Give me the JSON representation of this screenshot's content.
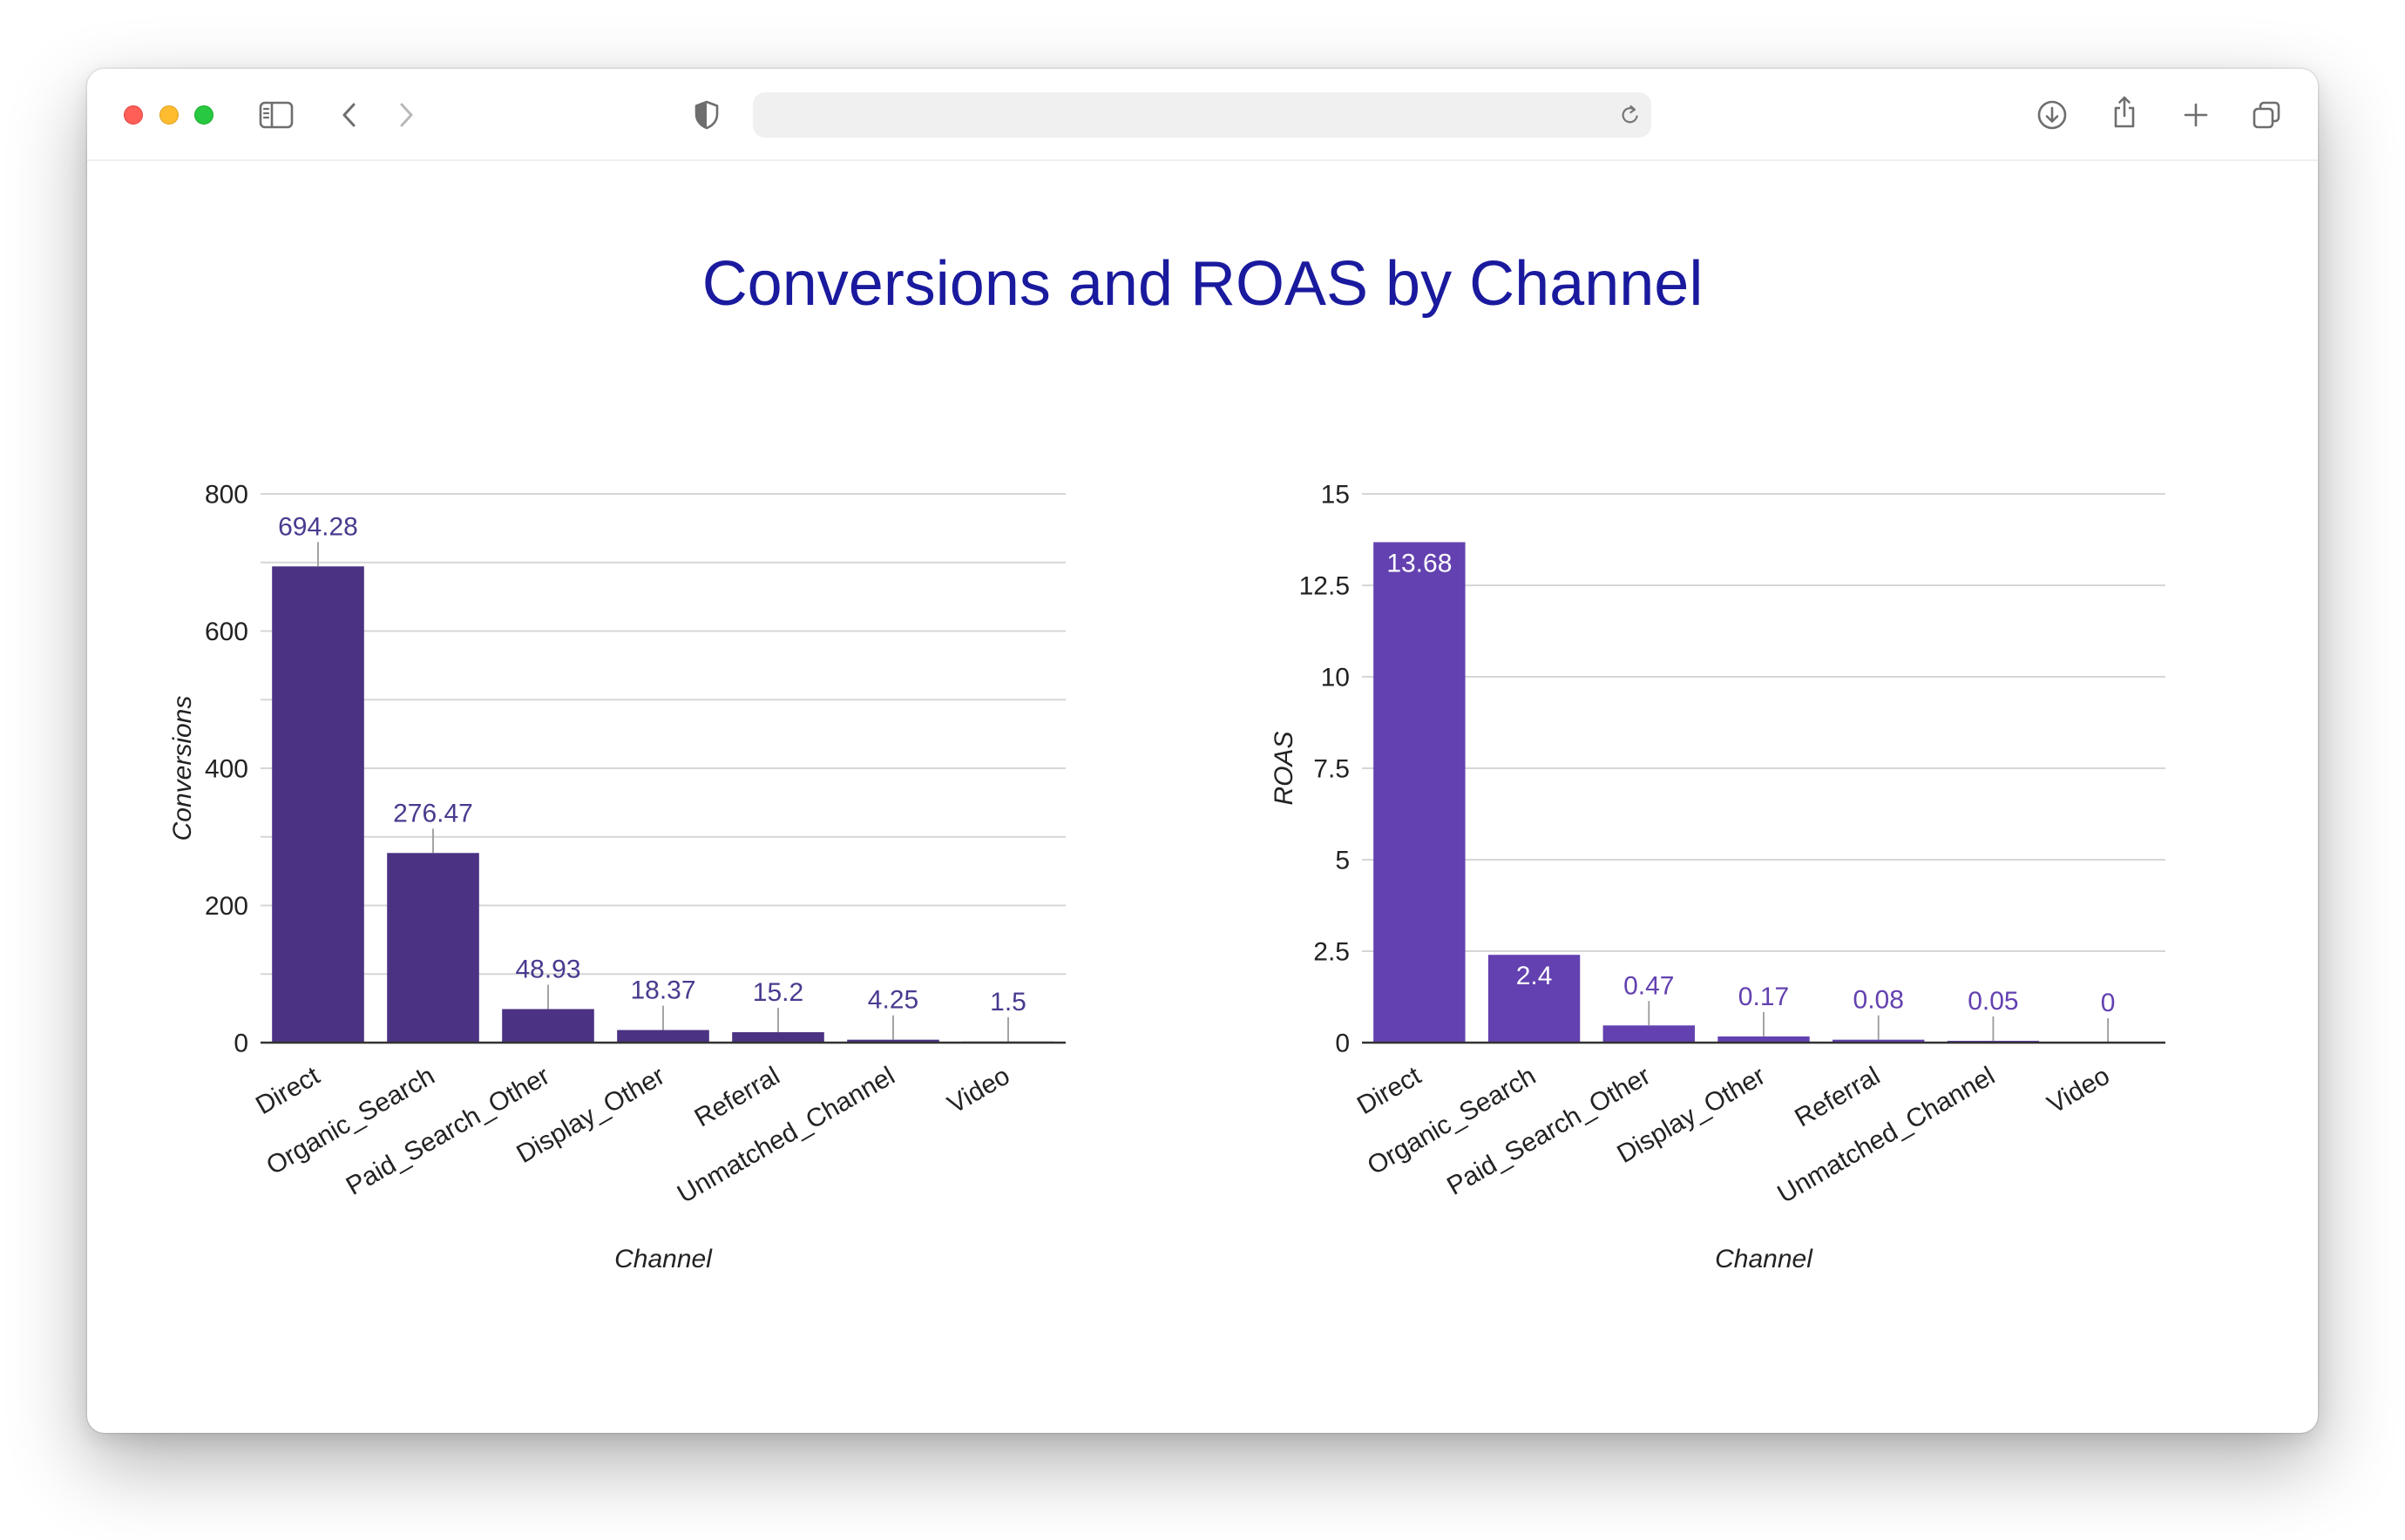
{
  "browser": {
    "toolbar_icons": {
      "sidebar": "sidebar-icon",
      "back": "chevron-left-icon",
      "forward": "chevron-right-icon",
      "privacy": "shield-icon",
      "reload": "reload-icon",
      "download": "download-icon",
      "share": "share-icon",
      "new_tab": "plus-icon",
      "tab_overview": "tab-overview-icon"
    },
    "address_bar": {
      "value": ""
    }
  },
  "page": {
    "title": "Conversions and ROAS by Channel",
    "title_color": "#1a1a9e"
  },
  "chart_data": [
    {
      "type": "bar",
      "categories": [
        "Direct",
        "Organic_Search",
        "Paid_Search_Other",
        "Display_Other",
        "Referral",
        "Unmatched_Channel",
        "Video"
      ],
      "values": [
        694.28,
        276.47,
        48.93,
        18.37,
        15.2,
        4.25,
        1.5
      ],
      "xlabel": "Channel",
      "ylabel": "Conversions",
      "ylim": [
        0,
        800
      ],
      "yticks": [
        0,
        200,
        400,
        600,
        800
      ],
      "ygrid": [
        0,
        100,
        200,
        300,
        400,
        500,
        600,
        700,
        800
      ],
      "grid": true,
      "data_label_position": "outside",
      "bar_color": "#4b3283",
      "label_color": "#4a3a8f"
    },
    {
      "type": "bar",
      "categories": [
        "Direct",
        "Organic_Search",
        "Paid_Search_Other",
        "Display_Other",
        "Referral",
        "Unmatched_Channel",
        "Video"
      ],
      "values": [
        13.68,
        2.4,
        0.47,
        0.17,
        0.08,
        0.05,
        0
      ],
      "xlabel": "Channel",
      "ylabel": "ROAS",
      "ylim": [
        0,
        15
      ],
      "yticks": [
        0,
        2.5,
        5,
        7.5,
        10,
        12.5,
        15
      ],
      "ygrid": [
        0,
        2.5,
        5,
        7.5,
        10,
        12.5,
        15
      ],
      "grid": true,
      "data_label_position": "inside-if-fits",
      "bar_color": "#6341b0",
      "label_color": "#6341b0",
      "inside_label_color": "#ffffff"
    }
  ]
}
